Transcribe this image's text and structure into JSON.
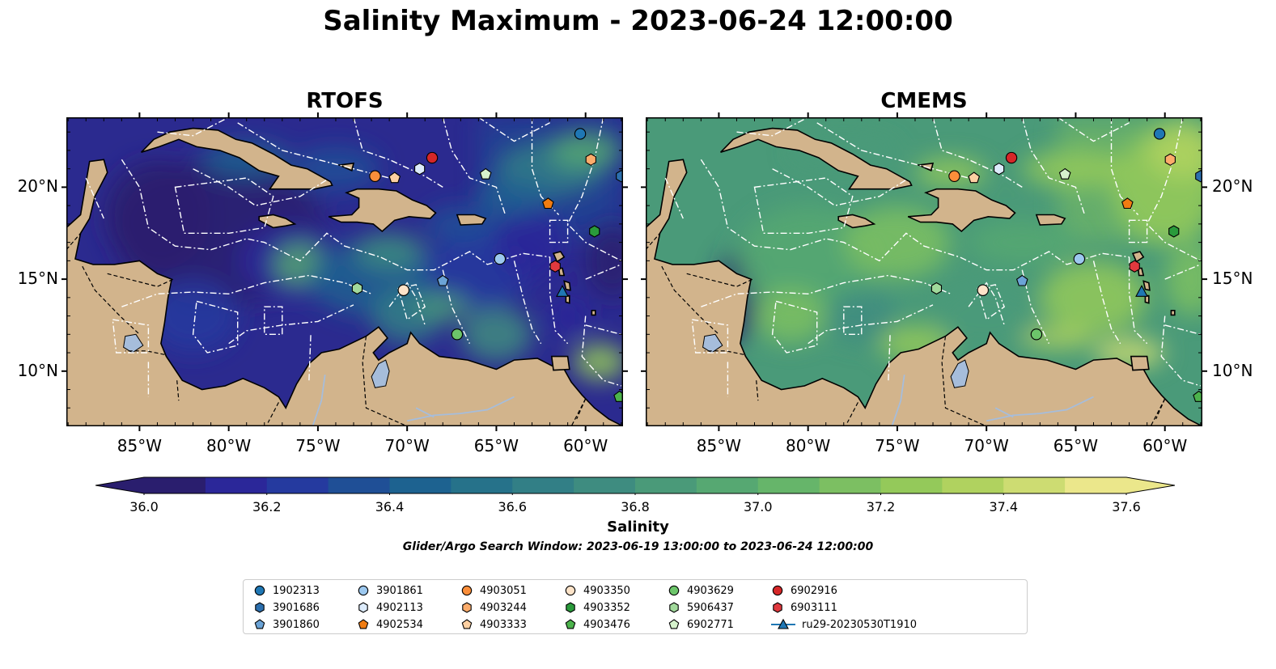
{
  "figure": {
    "suptitle": "Salinity Maximum - 2023-06-24 12:00:00",
    "search_window": "Glider/Argo Search Window: 2023-06-19 13:00:00 to 2023-06-24 12:00:00"
  },
  "panels": [
    {
      "title": "RTOFS",
      "model": "rtofs"
    },
    {
      "title": "CMEMS",
      "model": "cmems"
    }
  ],
  "axes": {
    "lon_range": [
      -89.1,
      -57.9
    ],
    "lat_range": [
      7.0,
      23.8
    ],
    "x_ticks": [
      "85°W",
      "80°W",
      "75°W",
      "70°W",
      "65°W",
      "60°W"
    ],
    "x_tick_values": [
      -85,
      -80,
      -75,
      -70,
      -65,
      -60
    ],
    "y_ticks": [
      "20°N",
      "15°N",
      "10°N"
    ],
    "y_tick_values": [
      20,
      15,
      10
    ]
  },
  "colorbar": {
    "label": "Salinity",
    "ticks": [
      "36.0",
      "36.2",
      "36.4",
      "36.6",
      "36.8",
      "37.0",
      "37.2",
      "37.4",
      "37.6"
    ],
    "range": [
      36.0,
      37.6
    ],
    "extend": "both",
    "colormap": "haline",
    "colors": [
      "#2a1e6e",
      "#2b2799",
      "#253a9f",
      "#1f4f96",
      "#1d6290",
      "#26728a",
      "#327f86",
      "#3e8c80",
      "#4a9a79",
      "#56a872",
      "#66b56a",
      "#7cbf62",
      "#94c95a",
      "#b0d25f",
      "#cddc72",
      "#ebe78b"
    ]
  },
  "land_color": "#d2b48c",
  "lake_color": "#a6bddb",
  "legend": {
    "items": [
      {
        "id": "1902313",
        "marker": "circle",
        "color": "#1f77b4"
      },
      {
        "id": "3901686",
        "marker": "hexagon",
        "color": "#2c6fae"
      },
      {
        "id": "3901860",
        "marker": "pentagon",
        "color": "#6ba3d6"
      },
      {
        "id": "3901861",
        "marker": "circle",
        "color": "#9cc8ef"
      },
      {
        "id": "4902113",
        "marker": "hexagon",
        "color": "#dcebfb"
      },
      {
        "id": "4902534",
        "marker": "pentagon",
        "color": "#f07c12"
      },
      {
        "id": "4903051",
        "marker": "circle",
        "color": "#fb8e3a"
      },
      {
        "id": "4903244",
        "marker": "hexagon",
        "color": "#fcac6b"
      },
      {
        "id": "4903333",
        "marker": "pentagon",
        "color": "#fdd0a2"
      },
      {
        "id": "4903350",
        "marker": "circle",
        "color": "#fde3c8"
      },
      {
        "id": "4903352",
        "marker": "hexagon",
        "color": "#2a9a3b"
      },
      {
        "id": "4903476",
        "marker": "pentagon",
        "color": "#4cb34c"
      },
      {
        "id": "4903629",
        "marker": "circle",
        "color": "#6cc56a"
      },
      {
        "id": "5906437",
        "marker": "hexagon",
        "color": "#a1d99b"
      },
      {
        "id": "6902771",
        "marker": "pentagon",
        "color": "#d6f2cc"
      },
      {
        "id": "6902916",
        "marker": "circle",
        "color": "#d62728"
      },
      {
        "id": "6903111",
        "marker": "hexagon",
        "color": "#e0393e"
      },
      {
        "id": "ru29-20230530T1910",
        "marker": "triangle-line",
        "color": "#1f77b4"
      }
    ]
  },
  "observations": [
    {
      "id": "1902313",
      "lon": -60.3,
      "lat": 22.9
    },
    {
      "id": "3901686",
      "lon": -58.0,
      "lat": 20.6
    },
    {
      "id": "3901860",
      "lon": -68.0,
      "lat": 14.9
    },
    {
      "id": "3901861",
      "lon": -64.8,
      "lat": 16.1
    },
    {
      "id": "4902113",
      "lon": -69.3,
      "lat": 21.0
    },
    {
      "id": "4902534",
      "lon": -62.1,
      "lat": 19.1
    },
    {
      "id": "4903051",
      "lon": -71.8,
      "lat": 20.6
    },
    {
      "id": "4903244",
      "lon": -59.7,
      "lat": 21.5
    },
    {
      "id": "4903333",
      "lon": -70.7,
      "lat": 20.5
    },
    {
      "id": "4903350",
      "lon": -70.2,
      "lat": 14.4
    },
    {
      "id": "4903352",
      "lon": -59.5,
      "lat": 17.6
    },
    {
      "id": "4903476",
      "lon": -58.1,
      "lat": 8.6
    },
    {
      "id": "4903629",
      "lon": -67.2,
      "lat": 12.0
    },
    {
      "id": "5906437",
      "lon": -72.8,
      "lat": 14.5
    },
    {
      "id": "6902771",
      "lon": -65.6,
      "lat": 20.7
    },
    {
      "id": "6902916",
      "lon": -68.6,
      "lat": 21.6
    },
    {
      "id": "6903111",
      "lon": -61.7,
      "lat": 15.7
    },
    {
      "id": "ru29-20230530T1910",
      "lon": -61.3,
      "lat": 14.3
    }
  ]
}
